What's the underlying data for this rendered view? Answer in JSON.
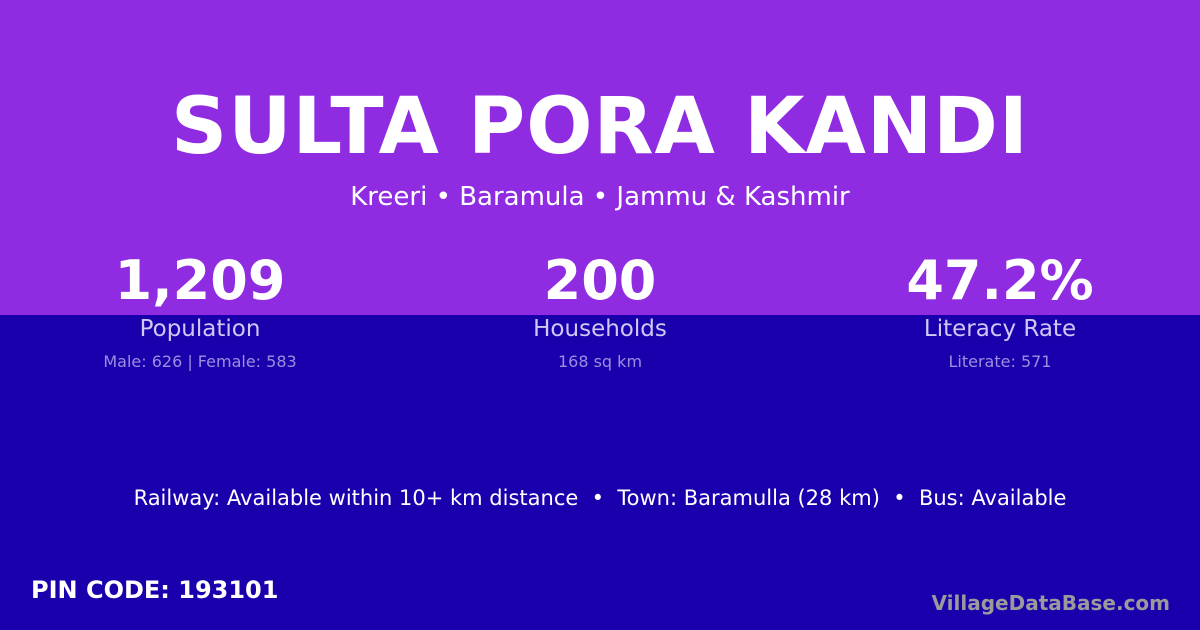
{
  "colors": {
    "top_background": "#8f2be0",
    "bottom_background": "#1a00ad",
    "text": "#ffffff",
    "brand": "#9a9a9a"
  },
  "village": {
    "name": "SULTA PORA KANDI",
    "location": "Kreeri • Baramula • Jammu & Kashmir"
  },
  "stats": [
    {
      "value": "1,209",
      "label": "Population",
      "detail": "Male: 626 | Female: 583"
    },
    {
      "value": "200",
      "label": "Households",
      "detail": "168 sq km"
    },
    {
      "value": "47.2%",
      "label": "Literacy Rate",
      "detail": "Literate: 571"
    }
  ],
  "transport": "Railway: Available within 10+ km distance  •  Town: Baramulla (28 km)  •  Bus: Available",
  "pin_code": "PIN CODE: 193101",
  "brand": "VillageDataBase.com"
}
